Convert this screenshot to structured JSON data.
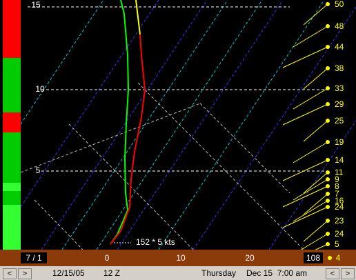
{
  "plot": {
    "y_labels": [
      "15",
      "10",
      "5"
    ],
    "x_labels": [
      "0",
      "10",
      "20"
    ],
    "left_box": "7 / 1",
    "right_box": "108",
    "right_box_end": "4",
    "wind_readout": "152 * 5 kts",
    "wind_speeds": [
      "50",
      "48",
      "44",
      "38",
      "33",
      "29",
      "25",
      "19",
      "14",
      "11",
      "9",
      "8",
      "7",
      "16",
      "24",
      "23",
      "24",
      "5"
    ]
  },
  "status": {
    "prev": "<",
    "next": ">",
    "date": "12/15/05",
    "run": "12 Z",
    "day": "Thursday",
    "time": "Dec 15  7:00 am",
    "prev2": "<",
    "next2": ">"
  }
}
